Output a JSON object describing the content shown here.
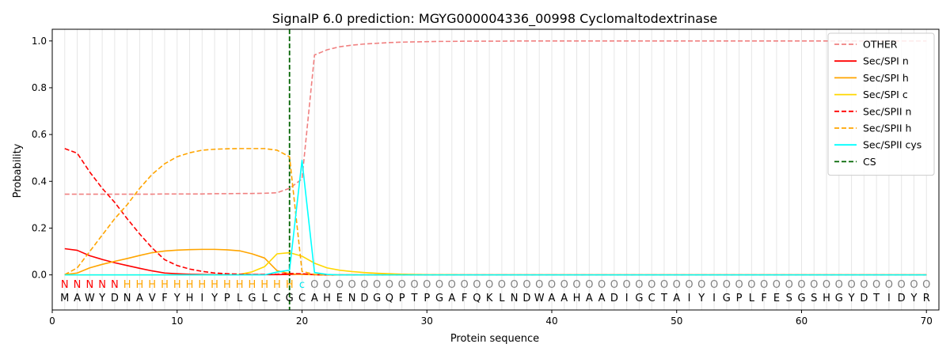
{
  "chart_data": {
    "type": "line",
    "title": "SignalP 6.0 prediction: MGYG000004336_00998 Cyclomaltodextrinase",
    "xlabel": "Protein sequence",
    "ylabel": "Probability",
    "xlim": [
      0,
      71
    ],
    "ylim": [
      -0.15,
      1.05
    ],
    "xticks": [
      0,
      10,
      20,
      30,
      40,
      50,
      60,
      70
    ],
    "yticks": [
      0.0,
      0.2,
      0.4,
      0.6,
      0.8,
      1.0
    ],
    "x": [
      1,
      2,
      3,
      4,
      5,
      6,
      7,
      8,
      9,
      10,
      11,
      12,
      13,
      14,
      15,
      16,
      17,
      18,
      19,
      20,
      21,
      22,
      23,
      24,
      25,
      26,
      27,
      28,
      29,
      30,
      31,
      32,
      33,
      34,
      35,
      36,
      37,
      38,
      39,
      40,
      41,
      42,
      43,
      44,
      45,
      46,
      47,
      48,
      49,
      50,
      51,
      52,
      53,
      54,
      55,
      56,
      57,
      58,
      59,
      60,
      61,
      62,
      63,
      64,
      65,
      66,
      67,
      68,
      69,
      70
    ],
    "sequence": [
      "M",
      "A",
      "W",
      "Y",
      "D",
      "N",
      "A",
      "V",
      "F",
      "Y",
      "H",
      "I",
      "Y",
      "P",
      "L",
      "G",
      "L",
      "C",
      "G",
      "C",
      "A",
      "H",
      "E",
      "N",
      "D",
      "G",
      "Q",
      "P",
      "T",
      "P",
      "G",
      "A",
      "F",
      "Q",
      "K",
      "L",
      "N",
      "D",
      "W",
      "A",
      "A",
      "H",
      "A",
      "A",
      "D",
      "I",
      "G",
      "C",
      "T",
      "A",
      "I",
      "Y",
      "I",
      "G",
      "P",
      "L",
      "F",
      "E",
      "S",
      "G",
      "S",
      "H",
      "G",
      "Y",
      "D",
      "T",
      "I",
      "D",
      "Y",
      "R"
    ],
    "region_labels": [
      "N",
      "N",
      "N",
      "N",
      "N",
      "H",
      "H",
      "H",
      "H",
      "H",
      "H",
      "H",
      "H",
      "H",
      "H",
      "H",
      "H",
      "H",
      "H",
      "c",
      "O",
      "O",
      "O",
      "O",
      "O",
      "O",
      "O",
      "O",
      "O",
      "O",
      "O",
      "O",
      "O",
      "O",
      "O",
      "O",
      "O",
      "O",
      "O",
      "O",
      "O",
      "O",
      "O",
      "O",
      "O",
      "O",
      "O",
      "O",
      "O",
      "O",
      "O",
      "O",
      "O",
      "O",
      "O",
      "O",
      "O",
      "O",
      "O",
      "O",
      "O",
      "O",
      "O",
      "O",
      "O",
      "O",
      "O",
      "O",
      "O",
      "O"
    ],
    "region_colors": {
      "N": "#ff0000",
      "H": "#ffa500",
      "c": "#00e5ee",
      "O": "#808080"
    },
    "cleavage_site": 19,
    "grid": "vertical lines at each residue",
    "legend_position": "top-right",
    "series": [
      {
        "name": "OTHER",
        "color": "#f08080",
        "dash": true,
        "values": [
          0.345,
          0.345,
          0.345,
          0.345,
          0.345,
          0.345,
          0.345,
          0.345,
          0.346,
          0.346,
          0.346,
          0.346,
          0.347,
          0.347,
          0.348,
          0.348,
          0.349,
          0.351,
          0.37,
          0.41,
          0.94,
          0.962,
          0.975,
          0.982,
          0.987,
          0.99,
          0.993,
          0.995,
          0.996,
          0.997,
          0.998,
          0.998,
          0.999,
          0.999,
          0.999,
          0.999,
          1,
          1,
          1,
          1,
          1,
          1,
          1,
          1,
          1,
          1,
          1,
          1,
          1,
          1,
          1,
          1,
          1,
          1,
          1,
          1,
          1,
          1,
          1,
          1,
          1,
          1,
          1,
          1,
          1,
          1,
          1,
          1,
          1,
          1
        ]
      },
      {
        "name": "Sec/SPI n",
        "color": "#ff0000",
        "dash": false,
        "values": [
          0.112,
          0.105,
          0.082,
          0.066,
          0.052,
          0.04,
          0.028,
          0.017,
          0.008,
          0.005,
          0.003,
          0.002,
          0.001,
          0.001,
          0.001,
          0.001,
          0.001,
          0.001,
          0.002,
          0.003,
          0.001,
          0,
          0,
          0,
          0,
          0,
          0,
          0,
          0,
          0,
          0,
          0,
          0,
          0,
          0,
          0,
          0,
          0,
          0,
          0,
          0,
          0,
          0,
          0,
          0,
          0,
          0,
          0,
          0,
          0,
          0,
          0,
          0,
          0,
          0,
          0,
          0,
          0,
          0,
          0,
          0,
          0,
          0,
          0,
          0,
          0,
          0,
          0,
          0,
          0
        ]
      },
      {
        "name": "Sec/SPI h",
        "color": "#ffa500",
        "dash": false,
        "values": [
          0.001,
          0.008,
          0.03,
          0.045,
          0.058,
          0.07,
          0.083,
          0.095,
          0.102,
          0.106,
          0.108,
          0.109,
          0.109,
          0.107,
          0.103,
          0.09,
          0.072,
          0.018,
          0.005,
          0.002,
          0.001,
          0,
          0,
          0,
          0,
          0,
          0,
          0,
          0,
          0,
          0,
          0,
          0,
          0,
          0,
          0,
          0,
          0,
          0,
          0,
          0,
          0,
          0,
          0,
          0,
          0,
          0,
          0,
          0,
          0,
          0,
          0,
          0,
          0,
          0,
          0,
          0,
          0,
          0,
          0,
          0,
          0,
          0,
          0,
          0,
          0,
          0,
          0,
          0,
          0
        ]
      },
      {
        "name": "Sec/SPI c",
        "color": "#ffd700",
        "dash": false,
        "values": [
          0,
          0,
          0,
          0,
          0,
          0,
          0,
          0,
          0,
          0,
          0,
          0,
          0,
          0,
          0.002,
          0.013,
          0.035,
          0.09,
          0.095,
          0.08,
          0.05,
          0.03,
          0.02,
          0.014,
          0.01,
          0.007,
          0.005,
          0.003,
          0.002,
          0.001,
          0.001,
          0.001,
          0,
          0,
          0,
          0,
          0,
          0,
          0,
          0,
          0,
          0,
          0,
          0,
          0,
          0,
          0,
          0,
          0,
          0,
          0,
          0,
          0,
          0,
          0,
          0,
          0,
          0,
          0,
          0,
          0,
          0,
          0,
          0,
          0,
          0,
          0,
          0,
          0,
          0
        ]
      },
      {
        "name": "Sec/SPII n",
        "color": "#ff0000",
        "dash": true,
        "values": [
          0.54,
          0.52,
          0.44,
          0.37,
          0.31,
          0.24,
          0.175,
          0.115,
          0.065,
          0.04,
          0.025,
          0.015,
          0.008,
          0.005,
          0.003,
          0.002,
          0.002,
          0.003,
          0.006,
          0.005,
          0.001,
          0,
          0,
          0,
          0,
          0,
          0,
          0,
          0,
          0,
          0,
          0,
          0,
          0,
          0,
          0,
          0,
          0,
          0,
          0,
          0,
          0,
          0,
          0,
          0,
          0,
          0,
          0,
          0,
          0,
          0,
          0,
          0,
          0,
          0,
          0,
          0,
          0,
          0,
          0,
          0,
          0,
          0,
          0,
          0,
          0,
          0,
          0,
          0,
          0
        ]
      },
      {
        "name": "Sec/SPII h",
        "color": "#ffa500",
        "dash": true,
        "values": [
          0.001,
          0.03,
          0.1,
          0.17,
          0.24,
          0.3,
          0.37,
          0.43,
          0.475,
          0.505,
          0.522,
          0.533,
          0.537,
          0.539,
          0.54,
          0.54,
          0.54,
          0.533,
          0.505,
          0.015,
          0.002,
          0,
          0,
          0,
          0,
          0,
          0,
          0,
          0,
          0,
          0,
          0,
          0,
          0,
          0,
          0,
          0,
          0,
          0,
          0,
          0,
          0,
          0,
          0,
          0,
          0,
          0,
          0,
          0,
          0,
          0,
          0,
          0,
          0,
          0,
          0,
          0,
          0,
          0,
          0,
          0,
          0,
          0,
          0,
          0,
          0,
          0,
          0,
          0,
          0
        ]
      },
      {
        "name": "Sec/SPII cys",
        "color": "#00ffff",
        "dash": false,
        "values": [
          0,
          0,
          0,
          0,
          0,
          0,
          0,
          0,
          0,
          0,
          0,
          0,
          0,
          0,
          0,
          0,
          0,
          0.012,
          0.02,
          0.49,
          0.01,
          0.002,
          0,
          0,
          0,
          0,
          0,
          0,
          0,
          0,
          0,
          0,
          0,
          0,
          0,
          0,
          0,
          0,
          0,
          0,
          0,
          0,
          0,
          0,
          0,
          0,
          0,
          0,
          0,
          0,
          0,
          0,
          0,
          0,
          0,
          0,
          0,
          0,
          0,
          0,
          0,
          0,
          0,
          0,
          0,
          0,
          0,
          0,
          0,
          0
        ]
      }
    ],
    "cs_legend": {
      "name": "CS",
      "color": "#006400"
    }
  }
}
